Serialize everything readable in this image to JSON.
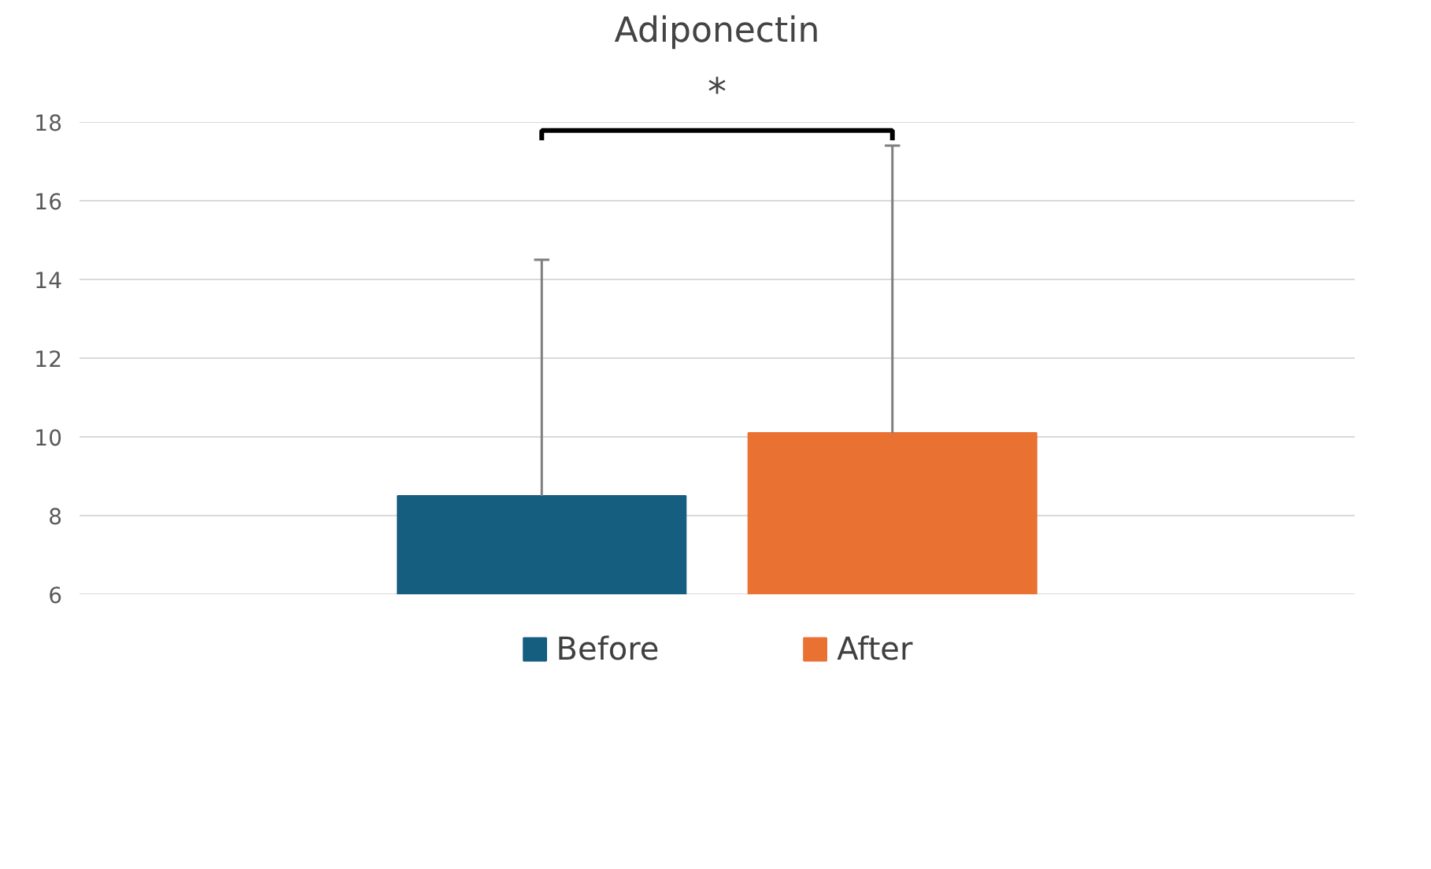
{
  "chart_data": {
    "type": "bar",
    "title": "Adiponectin",
    "categories": [
      null
    ],
    "series": [
      {
        "name": "Before",
        "color": "#165e80",
        "values": [
          8.5
        ],
        "errors": [
          [
            8.5,
            14.5
          ]
        ]
      },
      {
        "name": "After",
        "color": "#e97132",
        "values": [
          10.1
        ],
        "errors": [
          [
            10.1,
            17.4
          ]
        ]
      }
    ],
    "ylim": [
      6,
      18
    ],
    "yticks": [
      6,
      8,
      10,
      12,
      14,
      16,
      18
    ],
    "grid": "y",
    "legend": "bottom",
    "tick_labels": "y",
    "annotations": [
      "*"
    ]
  }
}
